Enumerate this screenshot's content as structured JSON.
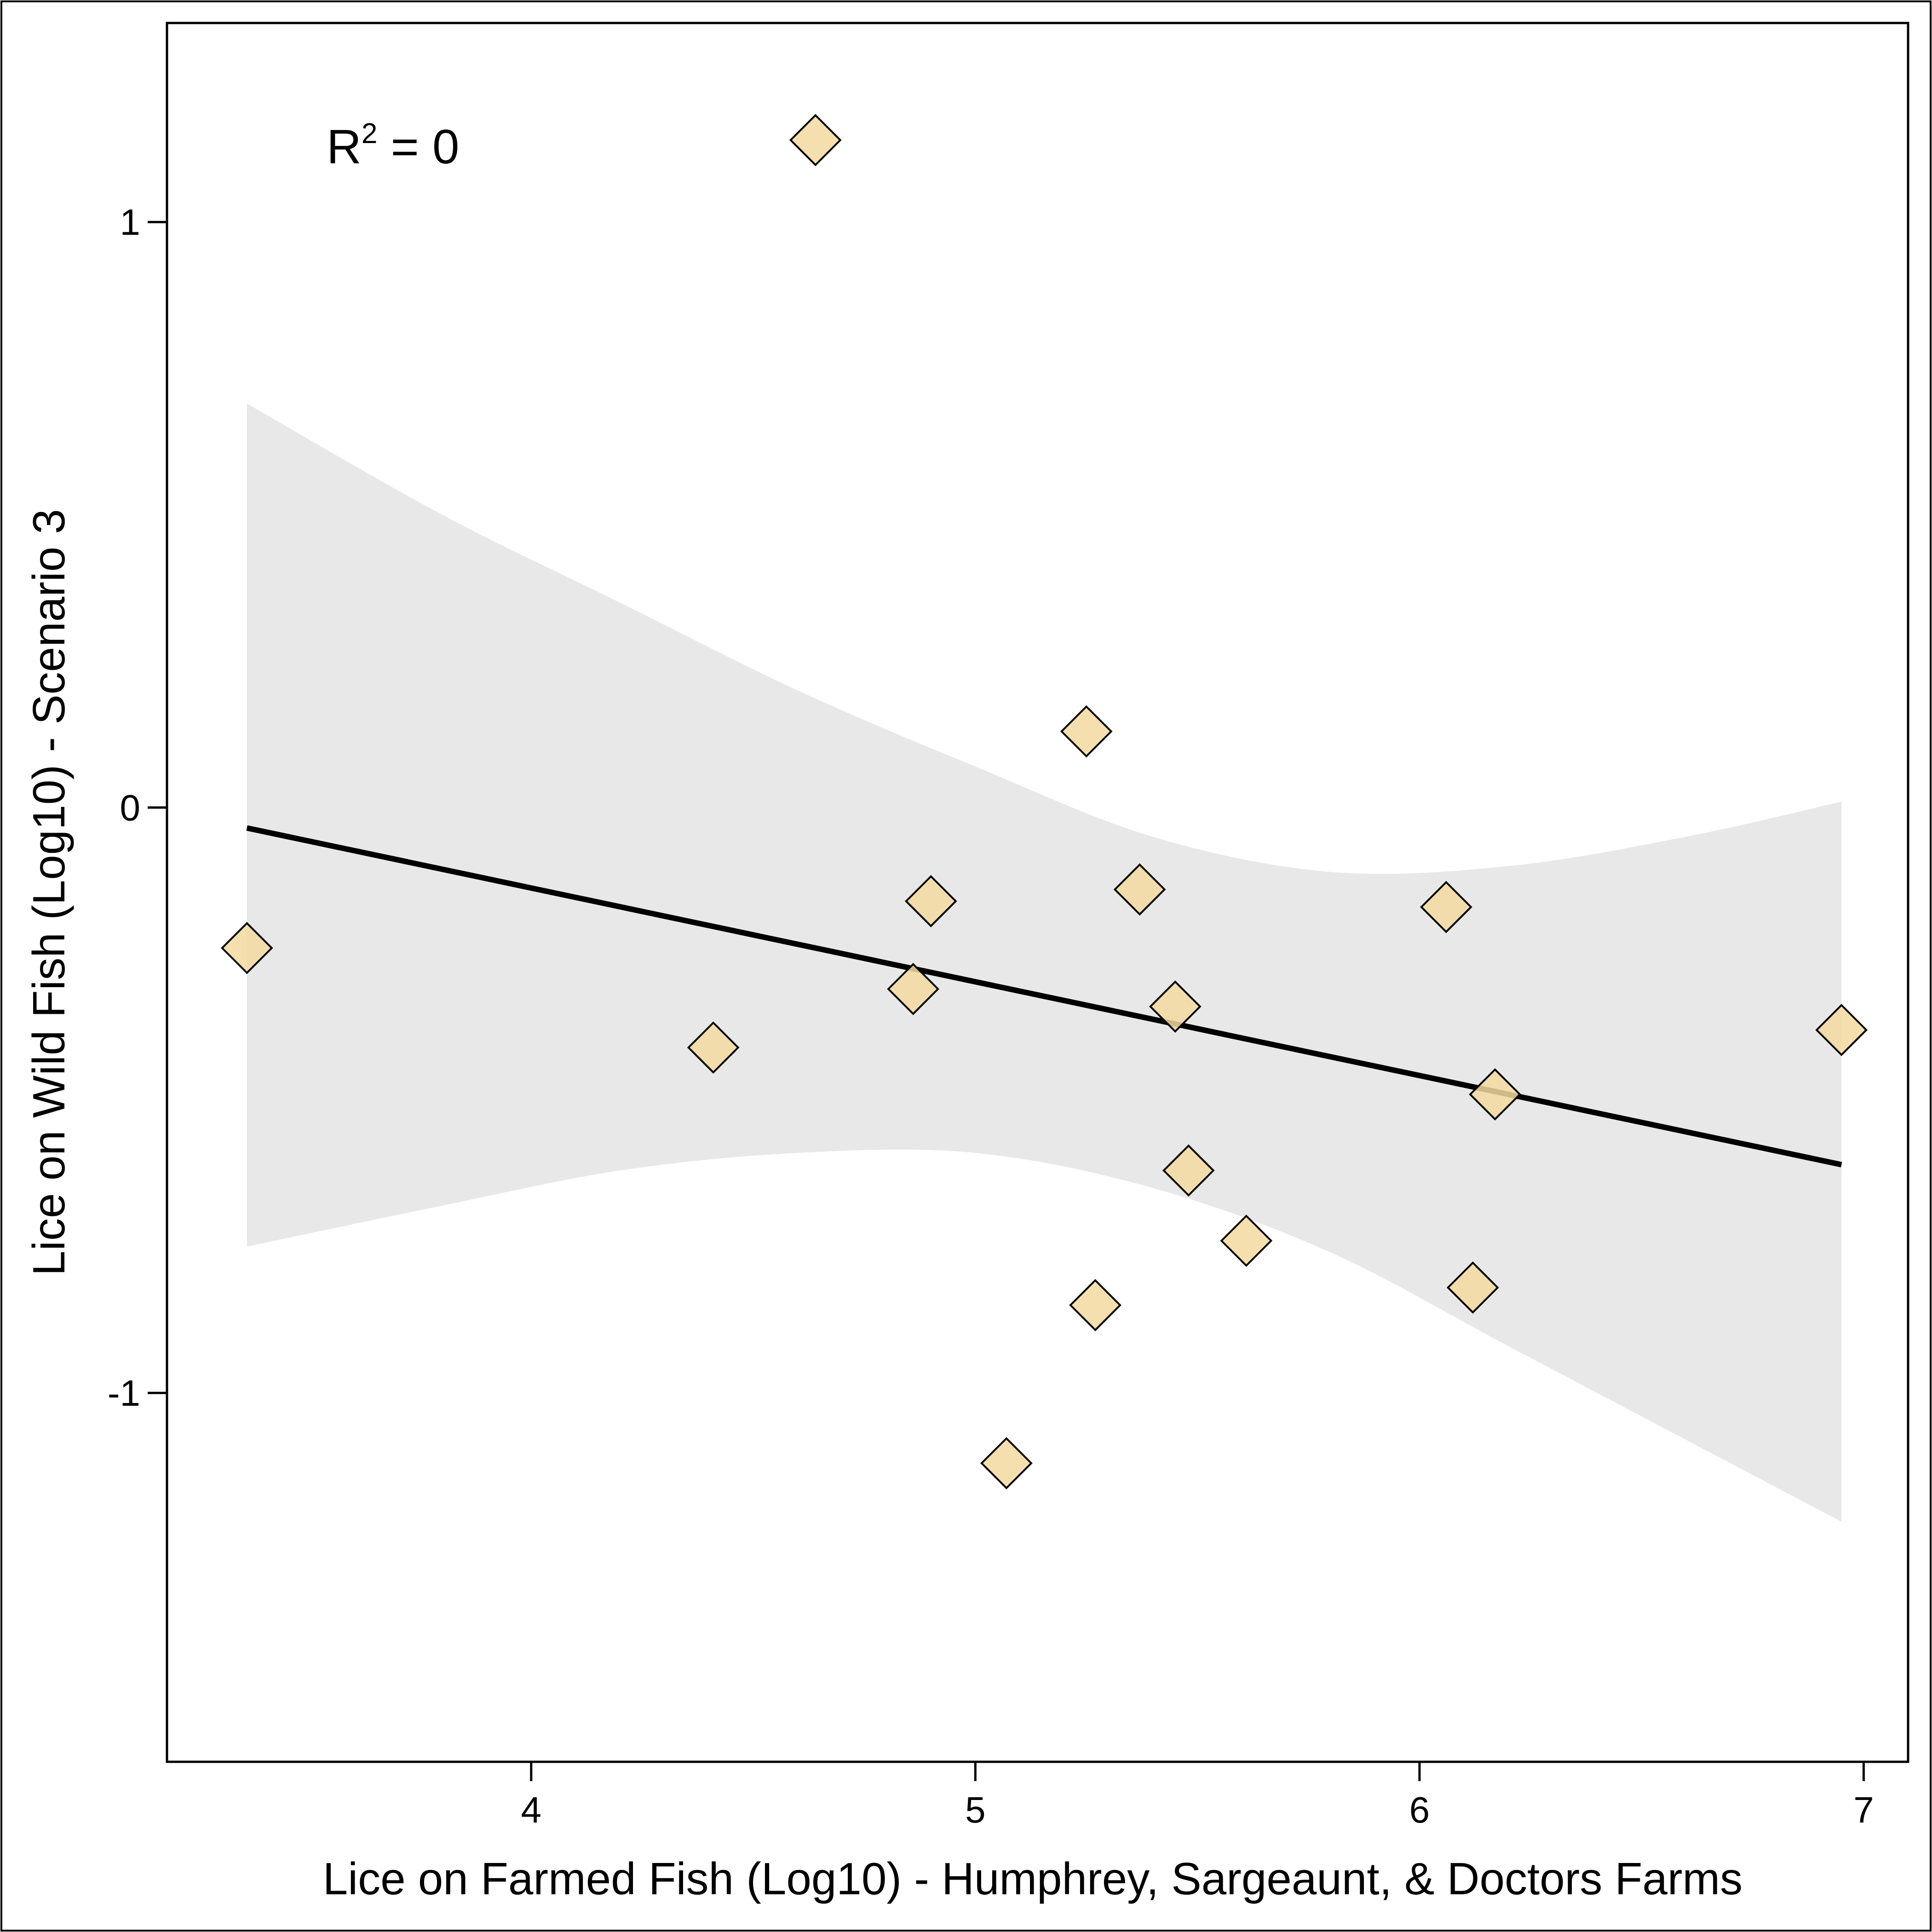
{
  "chart_data": {
    "type": "scatter",
    "xlabel": "Lice on Farmed Fish (Log10) - Humphrey, Sargeaunt, & Doctors Farms",
    "ylabel": "Lice on Wild Fish (Log10) - Scenario 3",
    "xlim": [
      3.18,
      7.1
    ],
    "ylim": [
      -1.63,
      1.34
    ],
    "x_ticks": [
      4,
      5,
      6,
      7
    ],
    "x_tick_labels": [
      "4",
      "5",
      "6",
      "7"
    ],
    "y_ticks": [
      1,
      0,
      -1
    ],
    "y_tick_labels": [
      "1",
      "0",
      "-1"
    ],
    "annotation": {
      "base": "R",
      "sup": "2",
      "rest": " = 0"
    },
    "points": [
      {
        "x": 3.36,
        "y": -0.24
      },
      {
        "x": 4.41,
        "y": -0.41
      },
      {
        "x": 4.64,
        "y": 1.14
      },
      {
        "x": 4.86,
        "y": -0.31
      },
      {
        "x": 4.9,
        "y": -0.16
      },
      {
        "x": 5.07,
        "y": -1.12
      },
      {
        "x": 5.25,
        "y": 0.13
      },
      {
        "x": 5.27,
        "y": -0.85
      },
      {
        "x": 5.37,
        "y": -0.14
      },
      {
        "x": 5.45,
        "y": -0.34
      },
      {
        "x": 5.48,
        "y": -0.62
      },
      {
        "x": 5.61,
        "y": -0.74
      },
      {
        "x": 6.06,
        "y": -0.17
      },
      {
        "x": 6.12,
        "y": -0.82
      },
      {
        "x": 6.17,
        "y": -0.49
      },
      {
        "x": 6.95,
        "y": -0.38
      }
    ],
    "fit_line": {
      "x": [
        3.36,
        6.95
      ],
      "y": [
        -0.035,
        -0.61
      ]
    },
    "confidence_band": {
      "x": [
        3.36,
        3.8,
        4.2,
        4.6,
        5.0,
        5.4,
        5.8,
        6.2,
        6.6,
        6.95
      ],
      "upper": [
        0.69,
        0.5,
        0.35,
        0.2,
        0.07,
        -0.05,
        -0.11,
        -0.1,
        -0.05,
        0.01
      ],
      "lower": [
        -0.75,
        -0.68,
        -0.62,
        -0.59,
        -0.59,
        -0.65,
        -0.76,
        -0.92,
        -1.08,
        -1.22
      ]
    },
    "marker": {
      "shape": "diamond",
      "fill": "#f5d9a0",
      "stroke": "#000000"
    },
    "band_color": "#e8e8e8",
    "line_color": "#000000",
    "grid": false,
    "legend": "none"
  }
}
